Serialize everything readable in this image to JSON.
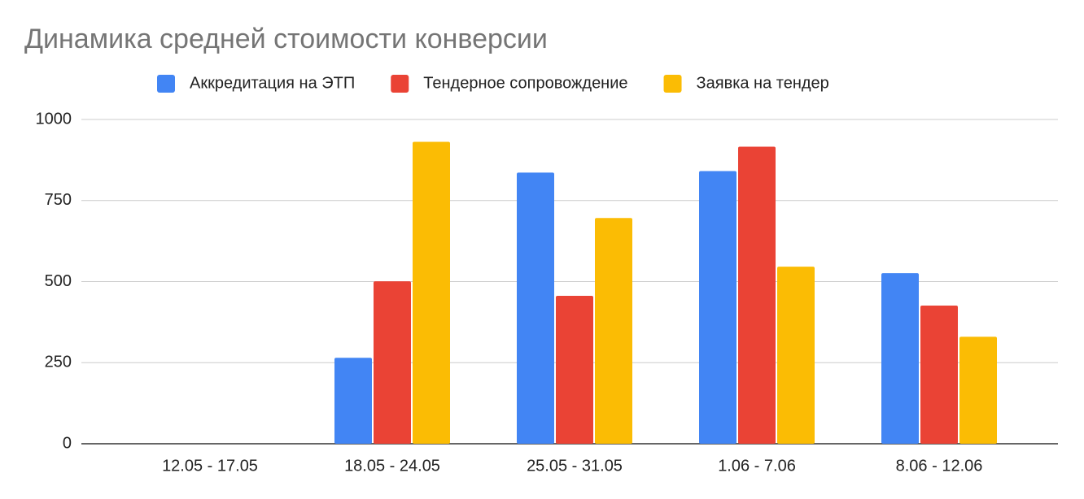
{
  "chart_data": {
    "type": "bar",
    "title": "Динамика средней стоимости конверсии",
    "categories": [
      "12.05 - 17.05",
      "18.05 - 24.05",
      "25.05 - 31.05",
      "1.06 - 7.06",
      "8.06 - 12.06"
    ],
    "series": [
      {
        "name": "Аккредитация на ЭТП",
        "color": "#4285f4",
        "values": [
          null,
          265,
          836,
          841,
          526
        ]
      },
      {
        "name": "Тендерное сопровождение",
        "color": "#ea4335",
        "values": [
          null,
          501,
          456,
          916,
          426
        ]
      },
      {
        "name": "Заявка на тендер",
        "color": "#fbbc04",
        "values": [
          null,
          931,
          696,
          546,
          330
        ]
      }
    ],
    "ylim": [
      0,
      1000
    ],
    "yticks": [
      0,
      250,
      500,
      750,
      1000
    ],
    "grid": true,
    "legend": "top"
  }
}
